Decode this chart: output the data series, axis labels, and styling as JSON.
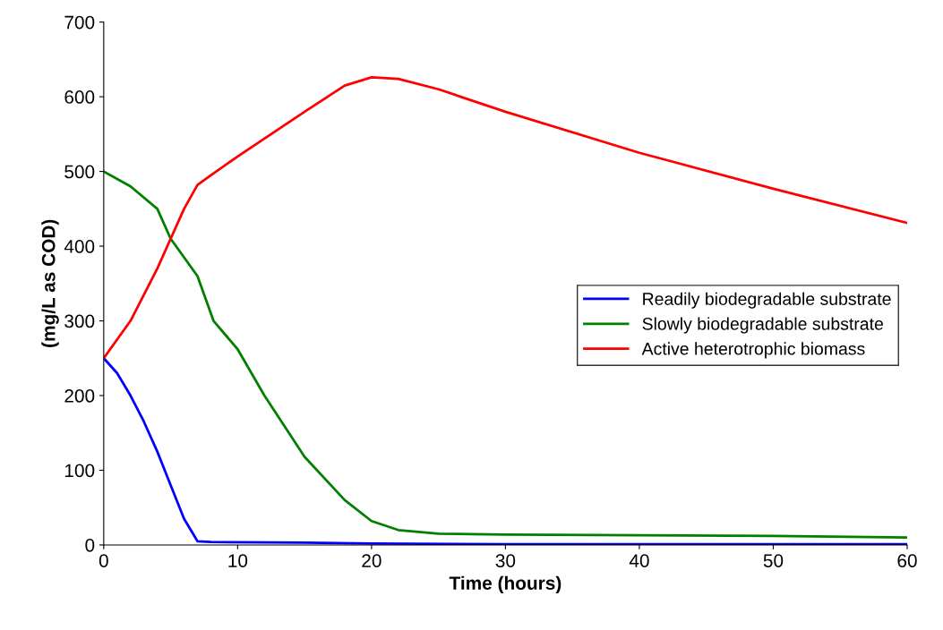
{
  "chart_data": {
    "type": "line",
    "xlabel": "Time (hours)",
    "ylabel": "(mg/L as COD)",
    "xlim": [
      0,
      60
    ],
    "xticks": [
      0,
      10,
      20,
      30,
      40,
      50,
      60
    ],
    "ylim": [
      0,
      700
    ],
    "yticks": [
      0,
      100,
      200,
      300,
      400,
      500,
      600,
      700
    ],
    "grid": false,
    "legend": "right",
    "marker": "none",
    "line_style": "solid",
    "series": [
      {
        "name": "Readily biodegradable substrate",
        "color": "#0000ff",
        "x": [
          0,
          1,
          2,
          3,
          4,
          5,
          6,
          7,
          8,
          15,
          20,
          30,
          40,
          60
        ],
        "values": [
          250,
          230,
          200,
          165,
          125,
          80,
          35,
          5,
          4,
          3,
          2,
          1,
          1,
          1
        ]
      },
      {
        "name": "Slowly biodegradable substrate",
        "color": "#008000",
        "x": [
          0,
          2,
          4,
          5,
          7,
          8.2,
          10,
          12,
          15,
          18,
          20,
          22,
          25,
          30,
          40,
          50,
          60
        ],
        "values": [
          500,
          480,
          450,
          410,
          360,
          300,
          262,
          200,
          118,
          60,
          32,
          20,
          15,
          14,
          13,
          12,
          10
        ]
      },
      {
        "name": "Active heterotrophic biomass",
        "color": "#ff0000",
        "x": [
          0,
          2,
          4,
          5,
          6,
          7,
          8,
          10,
          15,
          18,
          20,
          22,
          25,
          30,
          40,
          50,
          60
        ],
        "values": [
          250,
          300,
          370,
          410,
          450,
          482,
          495,
          520,
          580,
          615,
          626,
          624,
          610,
          580,
          525,
          477,
          431
        ]
      }
    ]
  }
}
